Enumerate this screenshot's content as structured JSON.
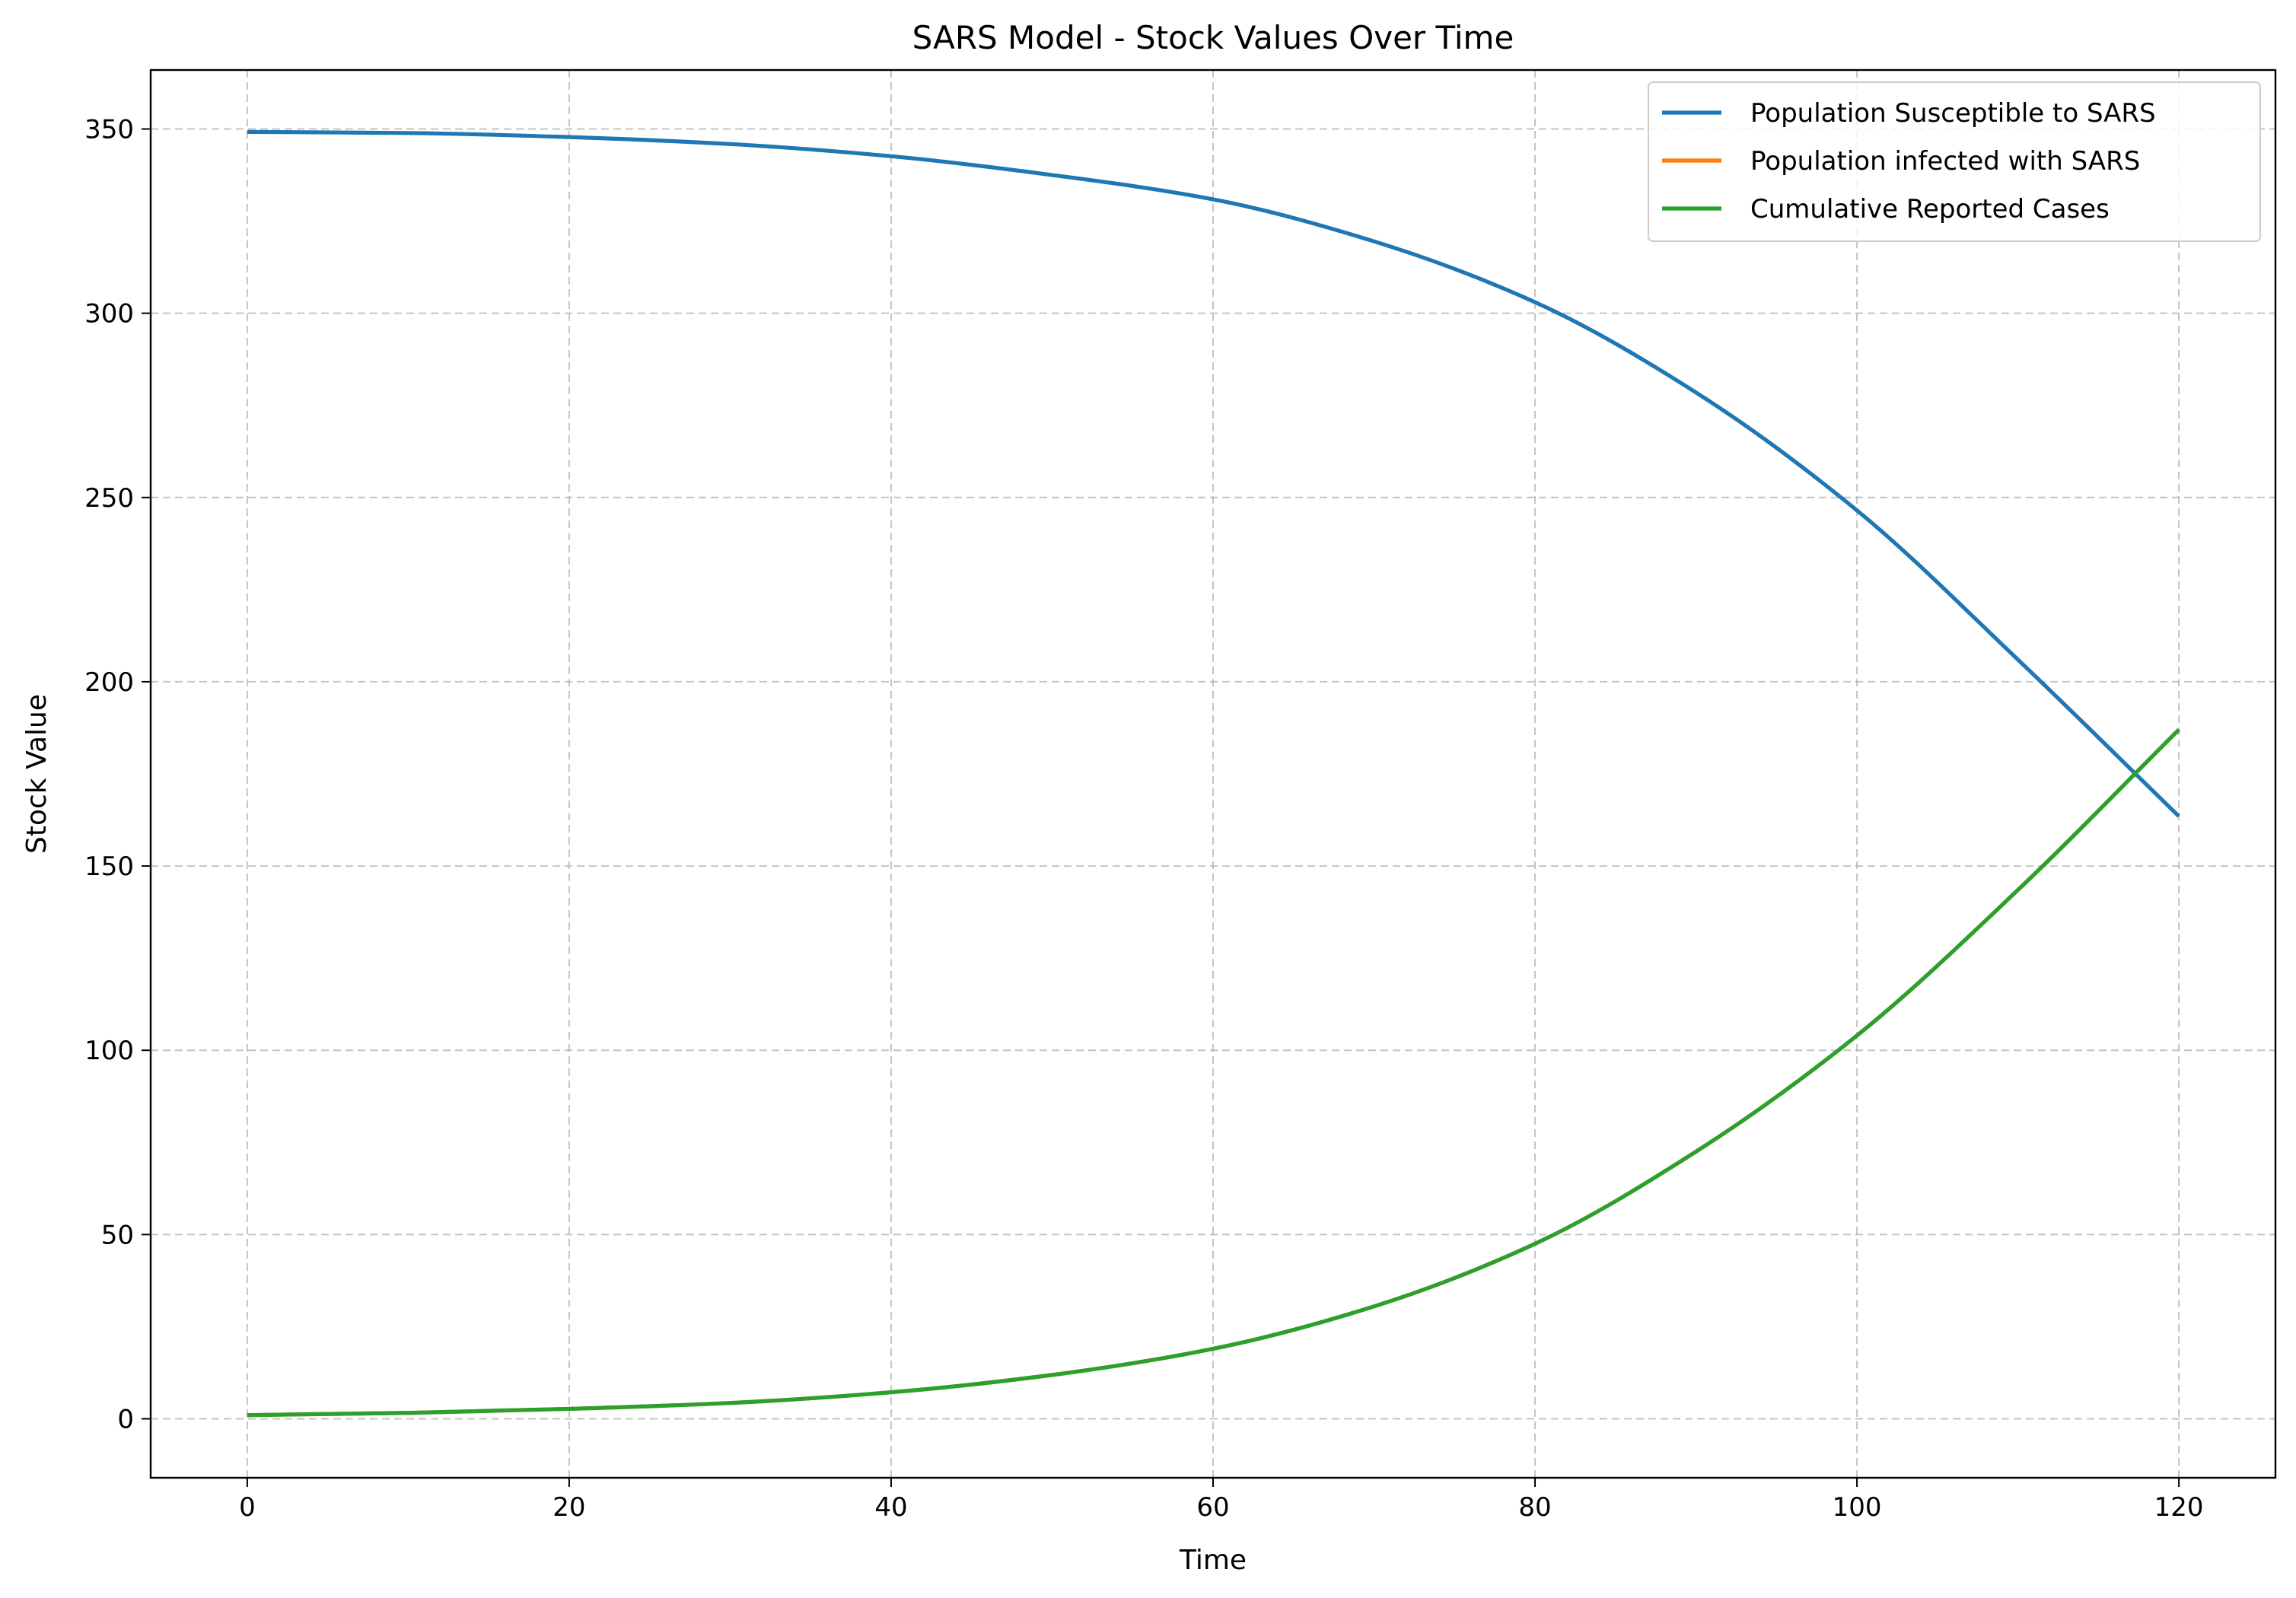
{
  "chart_data": {
    "type": "line",
    "title": "SARS Model - Stock Values Over Time",
    "xlabel": "Time",
    "ylabel": "Stock Value",
    "xlim": [
      -6,
      126
    ],
    "ylim": [
      -16,
      366
    ],
    "xticks": [
      0,
      20,
      40,
      60,
      80,
      100,
      120
    ],
    "yticks": [
      0,
      50,
      100,
      150,
      200,
      250,
      300,
      350
    ],
    "grid": true,
    "legend_position": "top-right",
    "x": [
      0,
      10,
      20,
      30,
      40,
      50,
      60,
      70,
      80,
      90,
      100,
      110,
      120
    ],
    "series": [
      {
        "name": "Population Susceptible to SARS",
        "color": "#1f77b4",
        "values": [
          349.2,
          348.9,
          347.8,
          345.9,
          342.6,
          337.5,
          330.9,
          319.5,
          303.0,
          278.5,
          246.5,
          206.0,
          163.5
        ]
      },
      {
        "name": "Population infected with SARS",
        "color": "#ff7f0e",
        "values": [
          1.0,
          1.6,
          2.7,
          4.3,
          7.2,
          11.9,
          19.0,
          30.5,
          47.5,
          72.5,
          104.0,
          143.5,
          187.0
        ]
      },
      {
        "name": "Cumulative Reported Cases",
        "color": "#2ca02c",
        "values": [
          1.0,
          1.6,
          2.7,
          4.3,
          7.2,
          11.9,
          19.0,
          30.5,
          47.5,
          72.5,
          104.0,
          143.5,
          187.0
        ]
      }
    ]
  }
}
